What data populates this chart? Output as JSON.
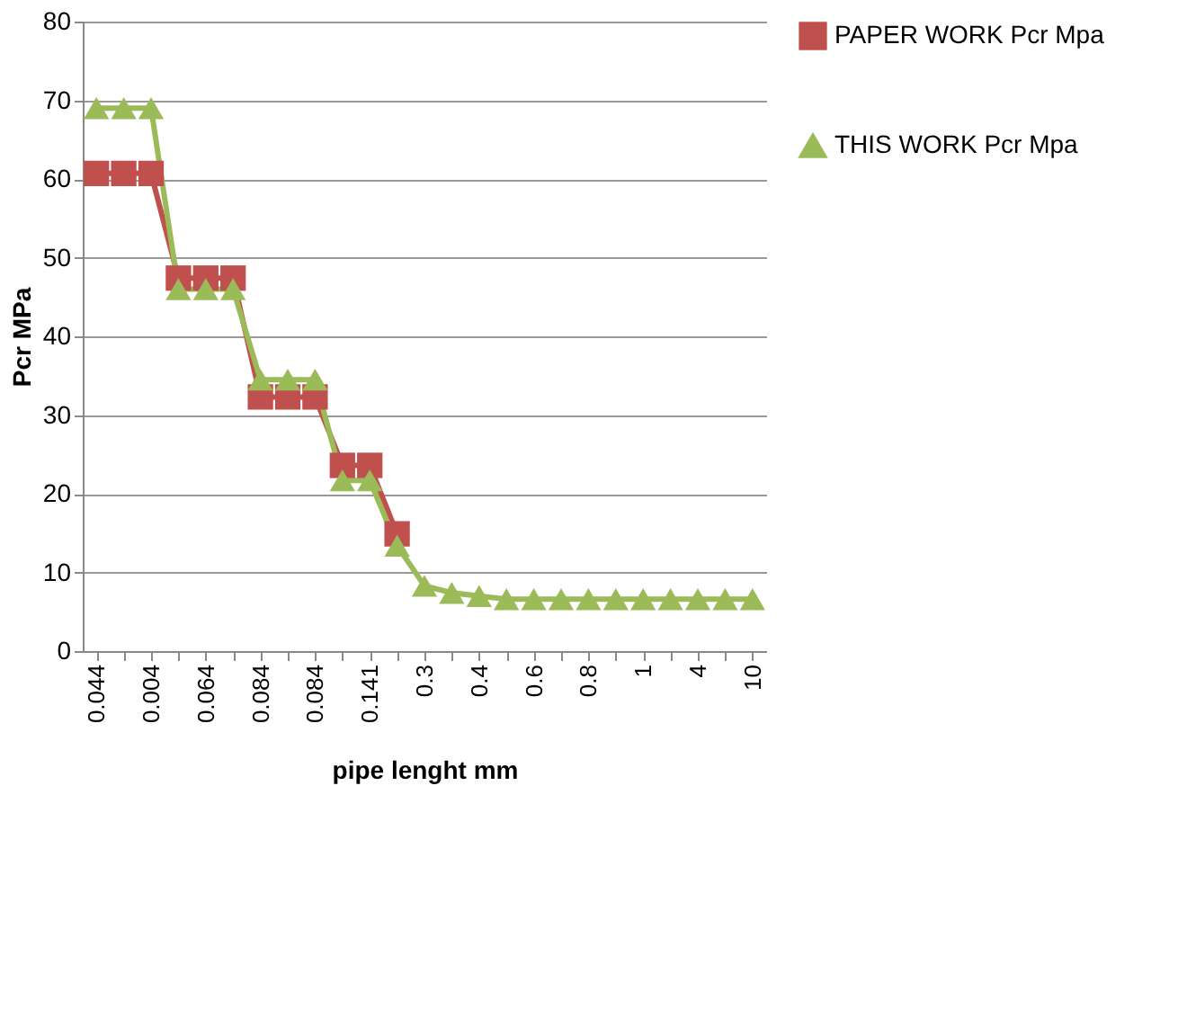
{
  "chart_data": {
    "type": "line",
    "xlabel": "pipe lenght mm",
    "ylabel": "Pcr MPa",
    "categories": [
      "0.044",
      null,
      "0.004",
      null,
      "0.064",
      null,
      "0.084",
      null,
      "0.084",
      null,
      "0.141",
      null,
      "0.3",
      null,
      "0.4",
      null,
      "0.6",
      null,
      "0.8",
      null,
      "1",
      null,
      "4",
      null,
      "10"
    ],
    "series": [
      {
        "name": "PAPER WORK Pcr Mpa",
        "color": "#c0504d",
        "marker": "square",
        "values": [
          60.7,
          60.7,
          60.7,
          47.4,
          47.4,
          47.4,
          32.3,
          32.3,
          32.3,
          23.6,
          23.6,
          14.9,
          null,
          null,
          null,
          null,
          null,
          null,
          null,
          null,
          null,
          null,
          null,
          null,
          null
        ]
      },
      {
        "name": "THIS WORK Pcr Mpa",
        "color": "#9bbb59",
        "marker": "triangle",
        "values": [
          69,
          69,
          69,
          46,
          46,
          46,
          34.5,
          34.5,
          34.5,
          21.7,
          21.7,
          13.4,
          8.3,
          7.4,
          7.0,
          6.6,
          6.6,
          6.6,
          6.6,
          6.6,
          6.6,
          6.6,
          6.6,
          6.6,
          6.6
        ]
      }
    ],
    "ylim": [
      0,
      80
    ],
    "yticks": [
      0,
      10,
      20,
      30,
      40,
      50,
      60,
      70,
      80
    ],
    "grid": "y",
    "legend": "right"
  }
}
